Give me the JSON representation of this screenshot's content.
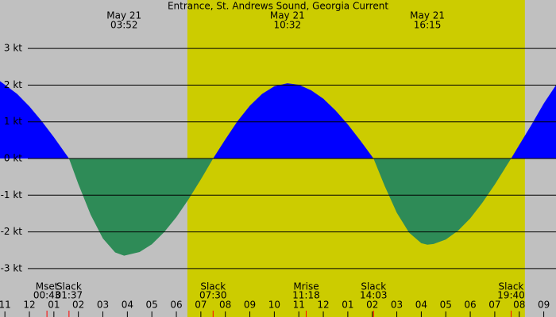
{
  "chart_data": {
    "type": "area",
    "title": "Entrance, St. Andrews Sound, Georgia Current",
    "background_color": "#c0c0c0",
    "daylight": {
      "start": 6.45,
      "end": 20.23,
      "color": "#cccc00"
    },
    "positive_color": "#0000ff",
    "negative_color": "#2e8b57",
    "x": [
      -1.2,
      -0.5,
      0,
      0.5,
      1.0,
      1.617,
      2.0,
      2.5,
      3.0,
      3.5,
      3.867,
      4.5,
      5.0,
      5.5,
      6.0,
      6.5,
      7.0,
      7.5,
      8.0,
      8.5,
      9.0,
      9.5,
      10.0,
      10.533,
      11.0,
      11.5,
      12.0,
      12.5,
      13.0,
      13.5,
      14.05,
      14.5,
      15.0,
      15.5,
      16.0,
      16.25,
      16.5,
      17.0,
      17.5,
      18.0,
      18.5,
      19.0,
      19.667,
      20.0,
      20.5,
      21.0,
      21.5
    ],
    "values": [
      2.11,
      1.76,
      1.42,
      1.02,
      0.58,
      0,
      -0.7,
      -1.53,
      -2.18,
      -2.56,
      -2.65,
      -2.55,
      -2.34,
      -2.01,
      -1.6,
      -1.11,
      -0.57,
      0,
      0.52,
      1.02,
      1.44,
      1.76,
      1.97,
      2.05,
      2.01,
      1.86,
      1.63,
      1.31,
      0.93,
      0.5,
      0,
      -0.74,
      -1.48,
      -2.02,
      -2.31,
      -2.35,
      -2.33,
      -2.21,
      -1.97,
      -1.63,
      -1.2,
      -0.71,
      0,
      0.37,
      0.92,
      1.5,
      2.0
    ],
    "xlim": [
      -1.2,
      21.5
    ],
    "ylim": [
      -3.5,
      3.5
    ],
    "yticks": [
      {
        "value": 3,
        "label": "3 kt"
      },
      {
        "value": 2,
        "label": "2 kt"
      },
      {
        "value": 1,
        "label": "1 kt"
      },
      {
        "value": 0,
        "label": "0 kt"
      },
      {
        "value": -1,
        "label": "-1 kt"
      },
      {
        "value": -2,
        "label": "-2 kt"
      },
      {
        "value": -3,
        "label": "-3 kt"
      }
    ],
    "xticks": [
      {
        "value": -1,
        "label": "11"
      },
      {
        "value": 0,
        "label": "12"
      },
      {
        "value": 1,
        "label": "01"
      },
      {
        "value": 2,
        "label": "02"
      },
      {
        "value": 3,
        "label": "03"
      },
      {
        "value": 4,
        "label": "04"
      },
      {
        "value": 5,
        "label": "05"
      },
      {
        "value": 6,
        "label": "06"
      },
      {
        "value": 7,
        "label": "07"
      },
      {
        "value": 8,
        "label": "08"
      },
      {
        "value": 9,
        "label": "09"
      },
      {
        "value": 10,
        "label": "10"
      },
      {
        "value": 11,
        "label": "11"
      },
      {
        "value": 12,
        "label": "12"
      },
      {
        "value": 13,
        "label": "01"
      },
      {
        "value": 14,
        "label": "02"
      },
      {
        "value": 15,
        "label": "03"
      },
      {
        "value": 16,
        "label": "04"
      },
      {
        "value": 17,
        "label": "05"
      },
      {
        "value": 18,
        "label": "06"
      },
      {
        "value": 19,
        "label": "07"
      },
      {
        "value": 20,
        "label": "08"
      },
      {
        "value": 21,
        "label": "09"
      }
    ],
    "grid": true,
    "peaks": [
      {
        "date": "May 21",
        "time": "03:52",
        "x": 3.867
      },
      {
        "date": "May 21",
        "time": "10:32",
        "x": 10.533
      },
      {
        "date": "May 21",
        "time": "16:15",
        "x": 16.25
      }
    ],
    "events": [
      {
        "label": "Mset",
        "time": "00:43",
        "x": 0.717
      },
      {
        "label": "Slack",
        "time": "01:37",
        "x": 1.617
      },
      {
        "label": "Slack",
        "time": "07:30",
        "x": 7.5
      },
      {
        "label": "Mrise",
        "time": "11:18",
        "x": 11.3
      },
      {
        "label": "Slack",
        "time": "14:03",
        "x": 14.05
      },
      {
        "label": "Slack",
        "time": "19:40",
        "x": 19.667
      }
    ]
  }
}
